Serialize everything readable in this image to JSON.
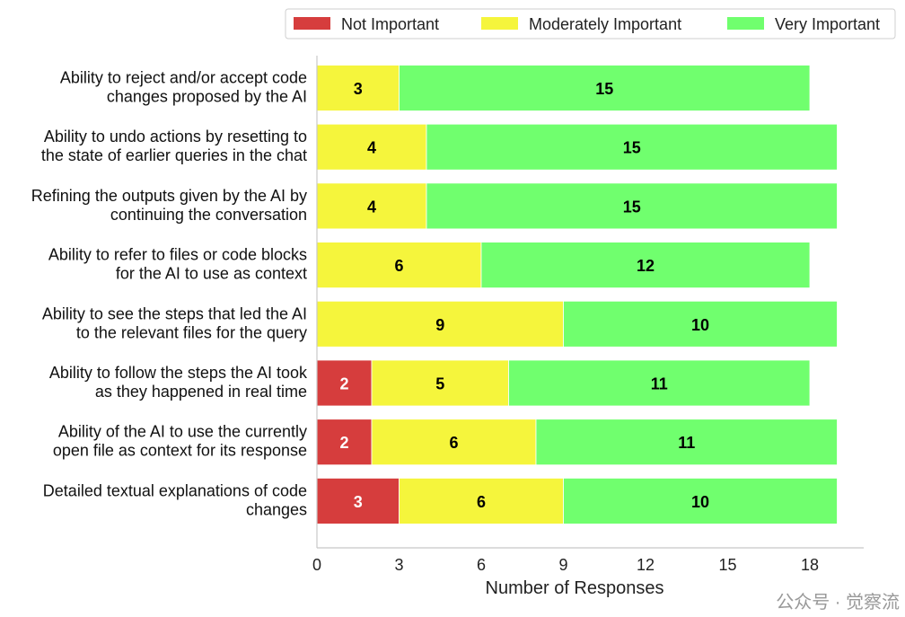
{
  "chart_data": {
    "type": "bar",
    "orientation": "horizontal",
    "stacked": true,
    "title": "",
    "xlabel": "Number of Responses",
    "ylabel": "",
    "xlim": [
      0,
      20
    ],
    "xticks": [
      0,
      3,
      6,
      9,
      12,
      15,
      18
    ],
    "grid": false,
    "legend_position": "top-right",
    "categories": [
      [
        "Ability to reject and/or accept code",
        "changes proposed by the AI"
      ],
      [
        "Ability to undo actions by resetting to",
        "the state of earlier queries in the chat"
      ],
      [
        "Refining the outputs given by the AI by",
        "continuing the conversation"
      ],
      [
        "Ability to refer to files or code blocks",
        "for the AI to use as context"
      ],
      [
        "Ability to see the steps that led the AI",
        "to the relevant files for the query"
      ],
      [
        "Ability to follow the steps the AI took",
        "as they happened in real time"
      ],
      [
        "Ability of the AI to use the currently",
        "open file as context for its response"
      ],
      [
        "Detailed textual explanations of code",
        "changes"
      ]
    ],
    "series": [
      {
        "name": "Not Important",
        "color": "#d63d3d",
        "label_color": "#ffffff",
        "values": [
          0,
          0,
          0,
          0,
          0,
          2,
          2,
          3
        ]
      },
      {
        "name": "Moderately Important",
        "color": "#f5f53c",
        "label_color": "#000000",
        "values": [
          3,
          4,
          4,
          6,
          9,
          5,
          6,
          6
        ]
      },
      {
        "name": "Very Important",
        "color": "#70ff6e",
        "label_color": "#000000",
        "values": [
          15,
          15,
          15,
          12,
          10,
          11,
          11,
          10
        ]
      }
    ]
  },
  "watermark": "公众号 · 觉察流"
}
